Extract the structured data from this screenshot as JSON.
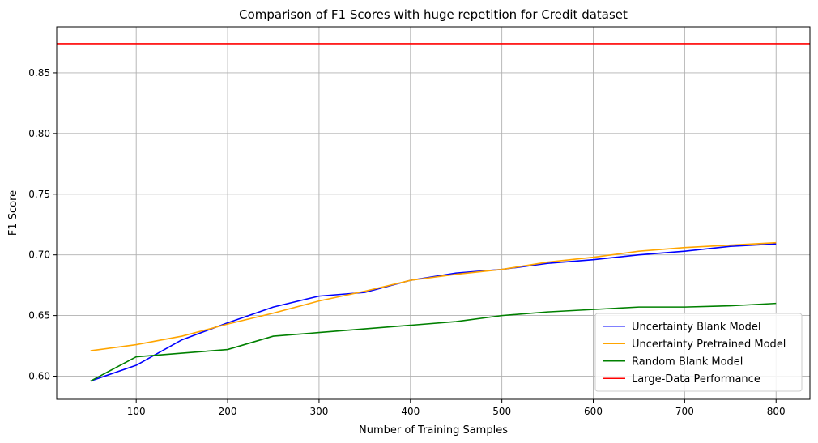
{
  "chart_data": {
    "type": "line",
    "title": "Comparison of F1 Scores with huge repetition for Credit dataset",
    "xlabel": "Number of Training Samples",
    "ylabel": "F1 Score",
    "xlim": [
      13,
      837
    ],
    "ylim": [
      0.581,
      0.888
    ],
    "xticks": [
      100,
      200,
      300,
      400,
      500,
      600,
      700,
      800
    ],
    "yticks": [
      0.6,
      0.65,
      0.7,
      0.75,
      0.8,
      0.85
    ],
    "grid": true,
    "legend_position": "bottom-right",
    "x": [
      50,
      100,
      150,
      200,
      250,
      300,
      350,
      400,
      450,
      500,
      550,
      600,
      650,
      700,
      750,
      800
    ],
    "series": [
      {
        "name": "Uncertainty Blank Model",
        "color": "#0000ff",
        "values": [
          0.596,
          0.609,
          0.63,
          0.644,
          0.657,
          0.666,
          0.669,
          0.679,
          0.685,
          0.688,
          0.693,
          0.696,
          0.7,
          0.703,
          0.707,
          0.709
        ]
      },
      {
        "name": "Uncertainty Pretrained Model",
        "color": "#ffa500",
        "values": [
          0.621,
          0.626,
          0.633,
          0.643,
          0.652,
          0.662,
          0.67,
          0.679,
          0.684,
          0.688,
          0.694,
          0.698,
          0.703,
          0.706,
          0.708,
          0.71
        ]
      },
      {
        "name": "Random Blank Model",
        "color": "#008000",
        "values": [
          0.596,
          0.616,
          0.619,
          0.622,
          0.633,
          0.636,
          0.639,
          0.642,
          0.645,
          0.65,
          0.653,
          0.655,
          0.657,
          0.657,
          0.658,
          0.66
        ]
      }
    ],
    "hline": {
      "name": "Large-Data Performance",
      "color": "#ff0000",
      "value": 0.874
    }
  }
}
